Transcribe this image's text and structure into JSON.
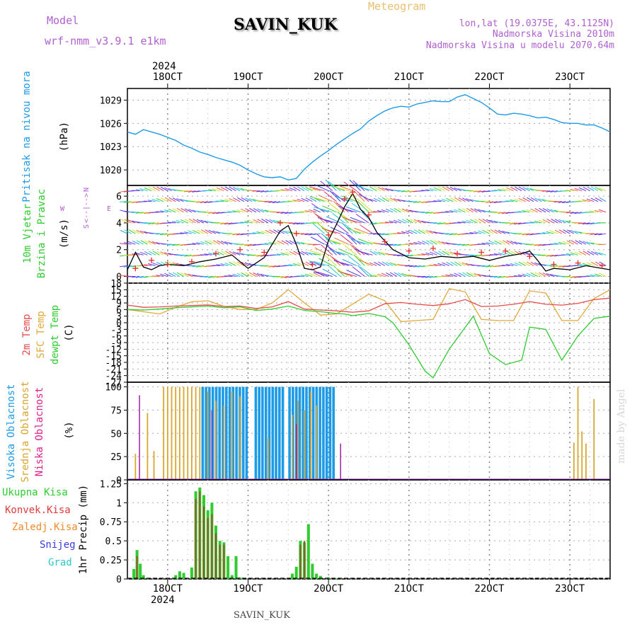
{
  "header": {
    "model_label": "Model",
    "model_name": "wrf-nmm_v3.9.1 e1km",
    "station": "SAVIN_KUK",
    "product": "Meteogram",
    "location": "lon,lat (19.0375E, 43.1125N)",
    "elevation": "Nadmorska Visina 2010m",
    "model_elevation": "Nadmorska Visina u modelu 2070.64m"
  },
  "footer": {
    "station": "SAVIN_KUK"
  },
  "watermark": "made by Angel",
  "time_axis": {
    "year": "2024",
    "labels": [
      "18OCT",
      "19OCT",
      "20OCT",
      "21OCT",
      "22OCT",
      "23OCT"
    ]
  },
  "colors": {
    "pressure": "#1e9be6",
    "wind_speed": "#000000",
    "gust": "#e82a2a",
    "temp_2m": "#e84a4a",
    "temp_sfc": "#e0a93a",
    "dewpoint": "#2ecc2e",
    "cloud_high": "#1e9be6",
    "cloud_mid": "#d9a62e",
    "cloud_low": "#a020a0",
    "precip_total": "#2ecc2e",
    "precip_conv": "#e03a3a",
    "precip_freezing": "#f08a2a",
    "precip_snow": "#3a3ae0",
    "precip_hail": "#2ec8c8"
  },
  "chart_data": [
    {
      "type": "line",
      "panel": "pressure",
      "ylabel_main": "Pritisak na nivou mora",
      "ylabel_unit": "(hPa)",
      "yticks": [
        "1029",
        "1026",
        "1023",
        "1020"
      ],
      "ylim": [
        1018,
        1030.5
      ],
      "x_start_day": 17.5,
      "series": [
        {
          "x": [
            17.5,
            17.6,
            17.7,
            17.8,
            17.9,
            18.0,
            18.1,
            18.2,
            18.3,
            18.4,
            18.5,
            18.6,
            18.7,
            18.8,
            18.9,
            19.0,
            19.1,
            19.2,
            19.3,
            19.4,
            19.5,
            19.6,
            19.7,
            19.8,
            19.9,
            20.0,
            20.1,
            20.2,
            20.3,
            20.4,
            20.5,
            20.6,
            20.7,
            20.8,
            20.9,
            21.0,
            21.1,
            21.2,
            21.3,
            21.4,
            21.5,
            21.6,
            21.7,
            21.8,
            21.9,
            22.0,
            22.1,
            22.2,
            22.3,
            22.4,
            22.5,
            22.6,
            22.7,
            22.8,
            22.9,
            23.0,
            23.1,
            23.2,
            23.3,
            23.4,
            23.5
          ],
          "y": [
            1024.9,
            1024.6,
            1025.2,
            1024.9,
            1024.6,
            1024.2,
            1023.8,
            1023.2,
            1022.8,
            1022.3,
            1022.0,
            1021.6,
            1021.3,
            1021.0,
            1020.6,
            1020.0,
            1019.5,
            1019.1,
            1019.0,
            1019.1,
            1018.7,
            1018.9,
            1020.1,
            1021.0,
            1021.8,
            1022.5,
            1023.3,
            1024.0,
            1024.7,
            1025.3,
            1026.3,
            1027.0,
            1027.6,
            1028.0,
            1028.2,
            1028.1,
            1028.5,
            1028.7,
            1028.9,
            1028.8,
            1028.8,
            1029.4,
            1029.7,
            1029.2,
            1028.7,
            1028.0,
            1027.2,
            1027.1,
            1027.3,
            1027.2,
            1027.0,
            1026.7,
            1026.8,
            1026.5,
            1026.1,
            1026.0,
            1026.0,
            1025.8,
            1025.8,
            1025.4,
            1024.9
          ]
        }
      ]
    },
    {
      "type": "line",
      "panel": "wind",
      "ylabel_main": "10m Vjetar",
      "ylabel_sub": "Brzina i Pravac",
      "ylabel_unit": "(m/s)",
      "compass_n": "N",
      "compass_e": "E",
      "compass_w": "W",
      "compass_s": "S",
      "compass_glyphs": "<--|-->",
      "yticks": [
        "6",
        "4",
        "2",
        "0"
      ],
      "ylim": [
        -0.5,
        6.8
      ],
      "series": [
        {
          "name": "speed",
          "x": [
            17.5,
            17.6,
            17.7,
            17.8,
            17.9,
            18.0,
            18.2,
            18.4,
            18.6,
            18.8,
            19.0,
            19.2,
            19.4,
            19.5,
            19.6,
            19.7,
            19.8,
            19.9,
            20.0,
            20.1,
            20.2,
            20.3,
            20.4,
            20.5,
            20.6,
            20.8,
            21.0,
            21.2,
            21.4,
            21.6,
            21.8,
            22.0,
            22.2,
            22.4,
            22.5,
            22.6,
            22.7,
            22.8,
            23.0,
            23.2,
            23.5
          ],
          "y": [
            0.5,
            1.8,
            0.7,
            0.5,
            0.8,
            0.9,
            0.8,
            1.1,
            1.3,
            1.6,
            0.6,
            1.4,
            3.4,
            3.8,
            2.4,
            0.6,
            0.5,
            0.7,
            2.7,
            3.9,
            5.2,
            6.2,
            5.0,
            4.4,
            3.3,
            2.0,
            1.4,
            1.3,
            1.5,
            1.4,
            1.5,
            1.2,
            1.5,
            1.7,
            1.9,
            1.2,
            0.4,
            0.6,
            0.5,
            0.8,
            0.5
          ]
        },
        {
          "name": "gust",
          "x": [
            17.6,
            17.8,
            18.0,
            18.3,
            18.6,
            18.9,
            19.2,
            19.4,
            19.6,
            19.8,
            20.0,
            20.2,
            20.3,
            20.5,
            20.7,
            21.0,
            21.3,
            21.6,
            21.9,
            22.2,
            22.5,
            22.8,
            23.1,
            23.4
          ],
          "y": [
            0.6,
            1.2,
            0.9,
            1.1,
            1.7,
            2.0,
            1.8,
            4.0,
            3.2,
            0.9,
            3.1,
            5.8,
            6.3,
            4.6,
            2.6,
            1.9,
            2.1,
            1.7,
            1.8,
            1.9,
            1.5,
            0.9,
            1.0,
            0.8
          ]
        }
      ]
    },
    {
      "type": "line",
      "panel": "temperature",
      "ylabel_l1": "2m Temp",
      "ylabel_l2": "SFC Temp",
      "ylabel_l3": "dewpt Temp",
      "ylabel_unit": "(C)",
      "yticks": [
        "18",
        "15",
        "12",
        "9",
        "6",
        "3",
        "0",
        "-3",
        "-6",
        "-9",
        "-12",
        "-15",
        "-18",
        "-21",
        "-24",
        "-27"
      ],
      "ylim": [
        -27,
        18
      ],
      "series": [
        {
          "name": "2m",
          "x": [
            17.5,
            17.7,
            17.9,
            18.1,
            18.3,
            18.5,
            18.7,
            18.9,
            19.1,
            19.3,
            19.5,
            19.7,
            19.9,
            20.1,
            20.3,
            20.5,
            20.7,
            20.9,
            21.1,
            21.3,
            21.5,
            21.7,
            21.9,
            22.1,
            22.3,
            22.5,
            22.7,
            22.9,
            23.1,
            23.3,
            23.5
          ],
          "y": [
            8.0,
            7.0,
            7.2,
            7.6,
            7.8,
            8.1,
            7.4,
            7.6,
            6.5,
            7.2,
            9.6,
            6.2,
            5.8,
            5.4,
            4.8,
            5.4,
            8.6,
            9.2,
            8.4,
            7.8,
            8.6,
            10.5,
            7.4,
            7.6,
            8.4,
            9.6,
            8.4,
            8.0,
            8.8,
            10.5,
            11.2
          ]
        },
        {
          "name": "sfc",
          "x": [
            17.5,
            17.7,
            17.9,
            18.1,
            18.3,
            18.5,
            18.7,
            18.9,
            19.1,
            19.3,
            19.5,
            19.7,
            19.9,
            20.1,
            20.3,
            20.5,
            20.7,
            20.9,
            21.1,
            21.3,
            21.5,
            21.7,
            21.9,
            22.1,
            22.3,
            22.5,
            22.7,
            22.9,
            23.1,
            23.3,
            23.5
          ],
          "y": [
            6.0,
            5.0,
            4.0,
            7.0,
            9.5,
            10.0,
            7.5,
            6.0,
            6.0,
            9.0,
            15.0,
            9.0,
            3.5,
            4.0,
            8.5,
            13.0,
            10.0,
            0.5,
            1.0,
            1.5,
            15.5,
            14.0,
            1.5,
            1.0,
            1.0,
            14.5,
            13.5,
            1.0,
            1.0,
            11.0,
            15.0
          ]
        },
        {
          "name": "dewpt",
          "x": [
            17.5,
            17.7,
            17.9,
            18.1,
            18.3,
            18.5,
            18.7,
            18.9,
            19.1,
            19.3,
            19.5,
            19.7,
            19.9,
            20.1,
            20.2,
            20.3,
            20.5,
            20.7,
            20.8,
            21.0,
            21.2,
            21.3,
            21.5,
            21.7,
            21.8,
            22.0,
            22.2,
            22.4,
            22.5,
            22.7,
            22.9,
            23.1,
            23.3,
            23.5
          ],
          "y": [
            6.0,
            5.8,
            6.2,
            6.8,
            7.2,
            7.6,
            6.8,
            7.2,
            5.6,
            6.2,
            7.6,
            5.6,
            5.0,
            4.2,
            4.0,
            3.2,
            4.2,
            2.8,
            0.0,
            -10.0,
            -22.0,
            -25.0,
            -12.0,
            -2.0,
            3.0,
            -14.0,
            -19.0,
            -17.0,
            -2.0,
            -3.0,
            -17.0,
            -6.0,
            2.0,
            3.0
          ]
        }
      ]
    },
    {
      "type": "bar",
      "panel": "clouds",
      "ylabel_l1": "Visoka Oblacnost",
      "ylabel_l2": "Srednja Oblacnost",
      "ylabel_l3": "Niska Oblacnost",
      "ylabel_unit": "(%)",
      "yticks": [
        "100",
        "75",
        "50",
        "25",
        "0"
      ],
      "ylim": [
        0,
        105
      ],
      "series": [
        {
          "name": "high",
          "segments": [
            {
              "start": 18.42,
              "end": 19.0,
              "value": 100
            },
            {
              "start": 19.08,
              "end": 19.42,
              "value": 100
            },
            {
              "start": 19.5,
              "end": 20.05,
              "value": 100
            }
          ]
        },
        {
          "name": "mid",
          "bars": [
            {
              "x": 17.6,
              "value": 28
            },
            {
              "x": 17.75,
              "value": 72
            },
            {
              "x": 17.83,
              "value": 31
            },
            {
              "x": 17.95,
              "value": 100
            },
            {
              "x": 18.0,
              "value": 100
            },
            {
              "x": 18.05,
              "value": 100
            },
            {
              "x": 18.1,
              "value": 100
            },
            {
              "x": 18.15,
              "value": 100
            },
            {
              "x": 18.2,
              "value": 100
            },
            {
              "x": 18.25,
              "value": 100
            },
            {
              "x": 18.3,
              "value": 100
            },
            {
              "x": 18.35,
              "value": 100
            },
            {
              "x": 18.4,
              "value": 100
            },
            {
              "x": 18.5,
              "value": 95
            },
            {
              "x": 18.6,
              "value": 85
            },
            {
              "x": 18.7,
              "value": 80
            },
            {
              "x": 18.8,
              "value": 95
            },
            {
              "x": 18.9,
              "value": 90
            },
            {
              "x": 19.25,
              "value": 45
            },
            {
              "x": 19.55,
              "value": 70
            },
            {
              "x": 19.62,
              "value": 85
            },
            {
              "x": 19.7,
              "value": 75
            },
            {
              "x": 19.78,
              "value": 95
            },
            {
              "x": 19.85,
              "value": 80
            },
            {
              "x": 23.05,
              "value": 40
            },
            {
              "x": 23.1,
              "value": 100
            },
            {
              "x": 23.15,
              "value": 52
            },
            {
              "x": 23.2,
              "value": 39
            },
            {
              "x": 23.3,
              "value": 87
            }
          ]
        },
        {
          "name": "low",
          "bars": [
            {
              "x": 17.65,
              "value": 91
            },
            {
              "x": 18.55,
              "value": 75
            },
            {
              "x": 19.6,
              "value": 60
            },
            {
              "x": 20.15,
              "value": 39
            }
          ]
        }
      ]
    },
    {
      "type": "bar",
      "panel": "precip",
      "legend": [
        "Ukupna Kisa",
        "Konvek.Kisa",
        "Zaledj.Kisa",
        "Snijeg",
        "Grad"
      ],
      "ylabel_unit": "1hr Precip (mm)",
      "yticks": [
        "1.25",
        "1",
        "0.75",
        "0.5",
        "0.25",
        "0"
      ],
      "ylim": [
        0,
        1.3
      ],
      "series": [
        {
          "name": "total",
          "x": [
            17.58,
            17.62,
            17.66,
            17.7,
            18.1,
            18.15,
            18.2,
            18.3,
            18.35,
            18.4,
            18.45,
            18.5,
            18.55,
            18.6,
            18.65,
            18.7,
            18.75,
            18.8,
            18.85,
            18.9,
            18.95,
            19.0,
            19.55,
            19.6,
            19.65,
            19.7,
            19.75,
            19.8,
            19.85,
            19.9,
            20.0,
            20.1
          ],
          "values": [
            0.13,
            0.38,
            0.2,
            0.05,
            0.05,
            0.1,
            0.08,
            0.15,
            1.15,
            1.2,
            1.1,
            0.9,
            1.0,
            0.7,
            0.5,
            0.48,
            0.3,
            0.05,
            0.3,
            0.02,
            0.0,
            0.0,
            0.07,
            0.16,
            0.5,
            0.48,
            0.72,
            0.2,
            0.07,
            0.04,
            0.02,
            0.01
          ]
        },
        {
          "name": "convective",
          "x": [
            17.62,
            18.35,
            18.4,
            18.45,
            18.5,
            18.55,
            18.6,
            18.65,
            18.7,
            19.65,
            19.7
          ],
          "values": [
            0.3,
            1.05,
            1.15,
            0.95,
            0.8,
            0.85,
            0.6,
            0.45,
            0.45,
            0.45,
            0.5
          ]
        }
      ]
    }
  ]
}
